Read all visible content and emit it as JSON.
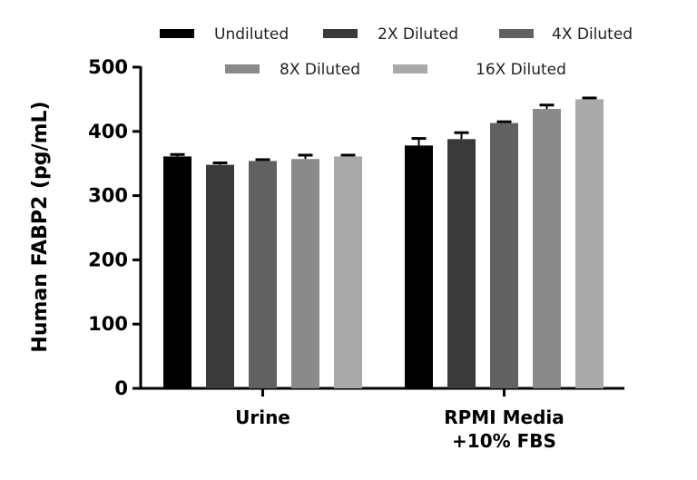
{
  "chart_data": {
    "type": "bar",
    "ylabel": "Human FABP2 (pg/mL)",
    "xlabel": "",
    "ylim": [
      0,
      500
    ],
    "yticks": [
      "0",
      "100",
      "200",
      "300",
      "400",
      "500"
    ],
    "categories": [
      [
        "Urine"
      ],
      [
        "RPMI Media",
        "+10% FBS"
      ]
    ],
    "legend_position": "top",
    "series": [
      {
        "name": "Undiluted",
        "color": "#000000",
        "values": [
          361,
          378
        ],
        "errors": [
          3,
          11
        ]
      },
      {
        "name": "2X Diluted",
        "color": "#3a3a3a",
        "values": [
          348,
          388
        ],
        "errors": [
          3,
          10
        ]
      },
      {
        "name": "4X Diluted",
        "color": "#616161",
        "values": [
          354,
          413
        ],
        "errors": [
          2,
          2
        ]
      },
      {
        "name": "8X Diluted",
        "color": "#8a8a8a",
        "values": [
          357,
          435
        ],
        "errors": [
          6,
          6
        ]
      },
      {
        "name": "16X Diluted",
        "color": "#a9a9a9",
        "values": [
          361,
          450
        ],
        "errors": [
          2,
          2
        ]
      }
    ]
  }
}
